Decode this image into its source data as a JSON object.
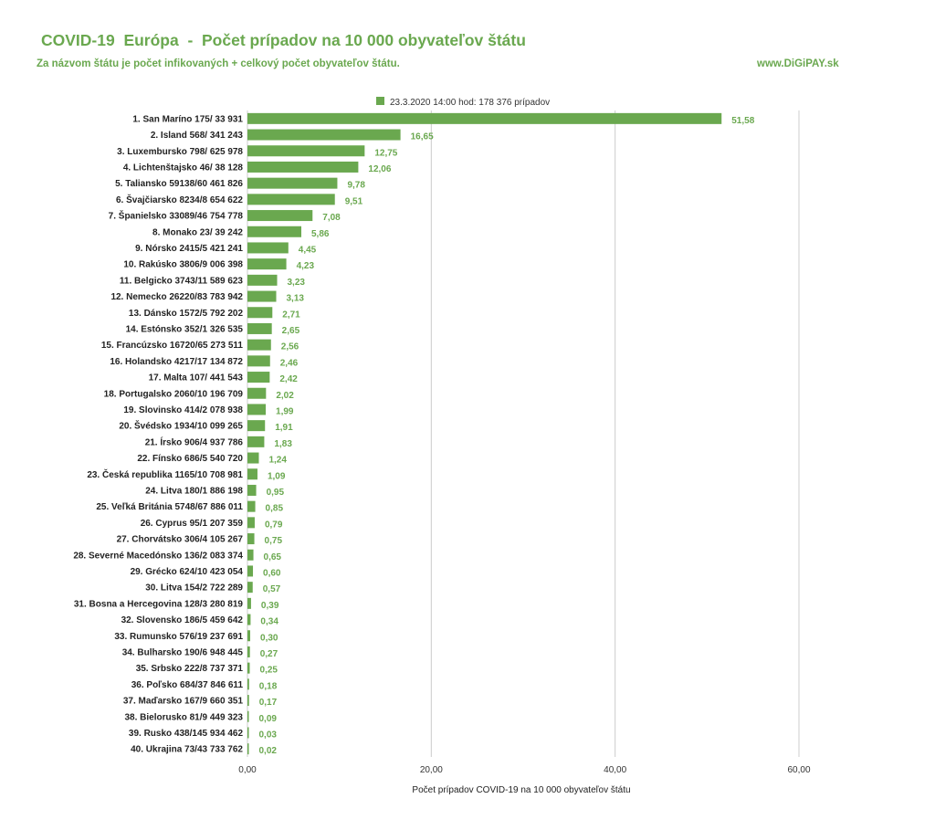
{
  "header": {
    "title": "COVID-19  Európa  -  Počet prípadov na 10 000 obyvateľov štátu",
    "subtitle": "Za názvom štátu je počet infikovaných + celkový počet obyvateľov štátu.",
    "site": "www.DiGiPAY.sk"
  },
  "colors": {
    "bar": "#6aa84f",
    "text_accent": "#6aa84f",
    "grid": "#cccccc"
  },
  "chart_data": {
    "type": "bar",
    "orientation": "horizontal",
    "title": "",
    "xlabel": "Počet prípadov COVID-19  na 10 000 obyvateľov štátu",
    "ylabel": "",
    "xlim": [
      0,
      60
    ],
    "x_ticks": [
      "0,00",
      "20,00",
      "40,00",
      "60,00"
    ],
    "grid": true,
    "legend_position": "top",
    "categories": [
      "1. San Maríno 175/ 33 931",
      "2. Island 568/ 341 243",
      "3. Luxembursko 798/ 625 978",
      "4. Lichtenštajsko 46/ 38 128",
      "5. Taliansko 59138/60 461 826",
      "6. Švajčiarsko 8234/8 654 622",
      "7. Španielsko 33089/46 754 778",
      "8. Monako 23/ 39 242",
      "9. Nórsko 2415/5 421 241",
      "10. Rakúsko 3806/9 006 398",
      "11. Belgicko 3743/11 589 623",
      "12. Nemecko 26220/83 783 942",
      "13. Dánsko 1572/5 792 202",
      "14. Estónsko 352/1 326 535",
      "15. Francúzsko 16720/65 273 511",
      "16. Holandsko 4217/17 134 872",
      "17. Malta 107/ 441 543",
      "18. Portugalsko 2060/10 196 709",
      "19. Slovinsko 414/2 078 938",
      "20. Švédsko 1934/10 099 265",
      "21. Írsko 906/4 937 786",
      "22. Fínsko 686/5 540 720",
      "23. Česká republika 1165/10 708 981",
      "24. Litva 180/1 886 198",
      "25. Veľká Británia 5748/67 886 011",
      "26. Cyprus 95/1 207 359",
      "27. Chorvátsko 306/4 105 267",
      "28. Severné Macedónsko 136/2 083 374",
      "29. Grécko 624/10 423 054",
      "30. Litva 154/2 722 289",
      "31. Bosna a Hercegovina 128/3 280 819",
      "32. Slovensko 186/5 459 642",
      "33. Rumunsko 576/19 237 691",
      "34. Bulharsko 190/6 948 445",
      "35. Srbsko 222/8 737 371",
      "36. Poľsko 684/37 846 611",
      "37. Maďarsko 167/9 660 351",
      "38. Bielorusko 81/9 449 323",
      "39. Rusko 438/145 934 462",
      "40. Ukrajina  73/43 733 762"
    ],
    "series": [
      {
        "name": "23.3.2020 14:00 hod: 178 376 prípadov",
        "values": [
          51.58,
          16.65,
          12.75,
          12.06,
          9.78,
          9.51,
          7.08,
          5.86,
          4.45,
          4.23,
          3.23,
          3.13,
          2.71,
          2.65,
          2.56,
          2.46,
          2.42,
          2.02,
          1.99,
          1.91,
          1.83,
          1.24,
          1.09,
          0.95,
          0.85,
          0.79,
          0.75,
          0.65,
          0.6,
          0.57,
          0.39,
          0.34,
          0.3,
          0.27,
          0.25,
          0.18,
          0.17,
          0.09,
          0.03,
          0.02
        ],
        "labels": [
          "51,58",
          "16,65",
          "12,75",
          "12,06",
          "9,78",
          "9,51",
          "7,08",
          "5,86",
          "4,45",
          "4,23",
          "3,23",
          "3,13",
          "2,71",
          "2,65",
          "2,56",
          "2,46",
          "2,42",
          "2,02",
          "1,99",
          "1,91",
          "1,83",
          "1,24",
          "1,09",
          "0,95",
          "0,85",
          "0,79",
          "0,75",
          "0,65",
          "0,60",
          "0,57",
          "0,39",
          "0,34",
          "0,30",
          "0,27",
          "0,25",
          "0,18",
          "0,17",
          "0,09",
          "0,03",
          "0,02"
        ]
      }
    ]
  }
}
